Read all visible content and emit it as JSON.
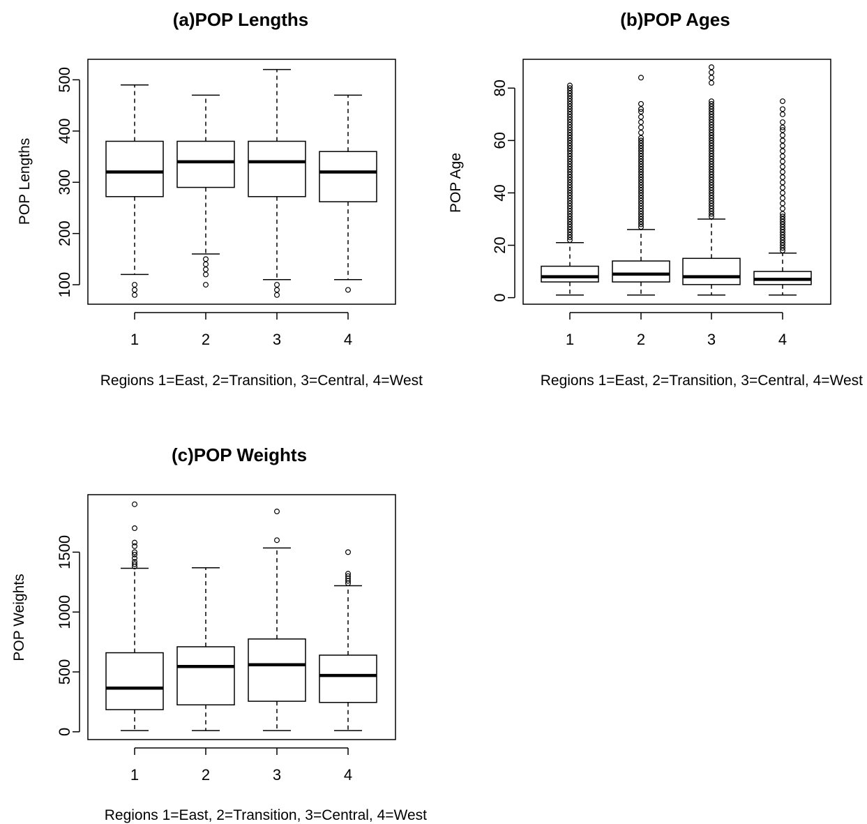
{
  "chart_data": [
    {
      "type": "box",
      "title": "(a)POP Lengths",
      "xlabel": "Regions 1=East, 2=Transition, 3=Central, 4=West",
      "ylabel": "POP Lengths",
      "categories": [
        "1",
        "2",
        "3",
        "4"
      ],
      "ylim": [
        62,
        540
      ],
      "yticks": [
        100,
        200,
        300,
        400,
        500
      ],
      "boxes": [
        {
          "category": "1",
          "whisker_low": 120,
          "q1": 272,
          "median": 320,
          "q3": 380,
          "whisker_high": 490,
          "outliers": [
            80,
            90,
            100
          ]
        },
        {
          "category": "2",
          "whisker_low": 160,
          "q1": 290,
          "median": 340,
          "q3": 380,
          "whisker_high": 470,
          "outliers": [
            100,
            120,
            130,
            140,
            150
          ]
        },
        {
          "category": "3",
          "whisker_low": 110,
          "q1": 272,
          "median": 340,
          "q3": 380,
          "whisker_high": 520,
          "outliers": [
            80,
            90,
            100
          ]
        },
        {
          "category": "4",
          "whisker_low": 110,
          "q1": 262,
          "median": 320,
          "q3": 360,
          "whisker_high": 470,
          "outliers": [
            90
          ]
        }
      ]
    },
    {
      "type": "box",
      "title": "(b)POP Ages",
      "xlabel": "Regions 1=East, 2=Transition, 3=Central, 4=West",
      "ylabel": "POP Age",
      "categories": [
        "1",
        "2",
        "3",
        "4"
      ],
      "ylim": [
        -2.5,
        91
      ],
      "yticks": [
        0,
        20,
        40,
        60,
        80
      ],
      "boxes": [
        {
          "category": "1",
          "whisker_low": 1,
          "q1": 6,
          "median": 8,
          "q3": 12,
          "whisker_high": 21,
          "outliers": [
            22,
            23,
            24,
            25,
            26,
            27,
            28,
            29,
            30,
            31,
            32,
            33,
            34,
            35,
            36,
            37,
            38,
            39,
            40,
            41,
            42,
            43,
            44,
            45,
            46,
            47,
            48,
            49,
            50,
            51,
            52,
            53,
            54,
            55,
            56,
            57,
            58,
            59,
            60,
            61,
            62,
            63,
            64,
            65,
            66,
            67,
            68,
            69,
            70,
            71,
            72,
            73,
            74,
            75,
            76,
            77,
            78,
            79,
            80,
            81
          ]
        },
        {
          "category": "2",
          "whisker_low": 1,
          "q1": 6,
          "median": 9,
          "q3": 14,
          "whisker_high": 26,
          "outliers": [
            27,
            28,
            29,
            30,
            31,
            32,
            33,
            34,
            35,
            36,
            37,
            38,
            39,
            40,
            41,
            42,
            43,
            44,
            45,
            46,
            47,
            48,
            49,
            50,
            51,
            52,
            53,
            54,
            55,
            56,
            57,
            58,
            59,
            60,
            61,
            63,
            65,
            67,
            69,
            71,
            72,
            74,
            84
          ]
        },
        {
          "category": "3",
          "whisker_low": 1,
          "q1": 5,
          "median": 8,
          "q3": 15,
          "whisker_high": 30,
          "outliers": [
            31,
            32,
            33,
            34,
            35,
            36,
            37,
            38,
            39,
            40,
            41,
            42,
            43,
            44,
            45,
            46,
            47,
            48,
            49,
            50,
            51,
            52,
            53,
            54,
            55,
            56,
            57,
            58,
            59,
            60,
            61,
            62,
            63,
            64,
            65,
            66,
            67,
            68,
            69,
            70,
            71,
            72,
            73,
            74,
            75,
            82,
            84,
            86,
            88
          ]
        },
        {
          "category": "4",
          "whisker_low": 1,
          "q1": 5,
          "median": 7,
          "q3": 10,
          "whisker_high": 17,
          "outliers": [
            18,
            19,
            20,
            21,
            22,
            23,
            24,
            25,
            26,
            27,
            28,
            29,
            30,
            31,
            32,
            34,
            36,
            38,
            40,
            42,
            44,
            46,
            48,
            50,
            52,
            54,
            56,
            58,
            60,
            62,
            64,
            65,
            67,
            70,
            72,
            75
          ]
        }
      ]
    },
    {
      "type": "box",
      "title": "(c)POP Weights",
      "xlabel": "Regions 1=East, 2=Transition, 3=Central, 4=West",
      "ylabel": "POP Weights",
      "categories": [
        "1",
        "2",
        "3",
        "4"
      ],
      "ylim": [
        -65,
        1980
      ],
      "yticks": [
        0,
        500,
        1000,
        1500
      ],
      "boxes": [
        {
          "category": "1",
          "whisker_low": 10,
          "q1": 185,
          "median": 365,
          "q3": 660,
          "whisker_high": 1365,
          "outliers": [
            1380,
            1400,
            1420,
            1450,
            1480,
            1500,
            1550,
            1580,
            1700,
            1900
          ]
        },
        {
          "category": "2",
          "whisker_low": 10,
          "q1": 225,
          "median": 545,
          "q3": 710,
          "whisker_high": 1370,
          "outliers": []
        },
        {
          "category": "3",
          "whisker_low": 10,
          "q1": 255,
          "median": 560,
          "q3": 775,
          "whisker_high": 1535,
          "outliers": [
            1600,
            1840
          ]
        },
        {
          "category": "4",
          "whisker_low": 10,
          "q1": 245,
          "median": 470,
          "q3": 640,
          "whisker_high": 1220,
          "outliers": [
            1240,
            1260,
            1280,
            1300,
            1320,
            1500
          ]
        }
      ]
    }
  ]
}
